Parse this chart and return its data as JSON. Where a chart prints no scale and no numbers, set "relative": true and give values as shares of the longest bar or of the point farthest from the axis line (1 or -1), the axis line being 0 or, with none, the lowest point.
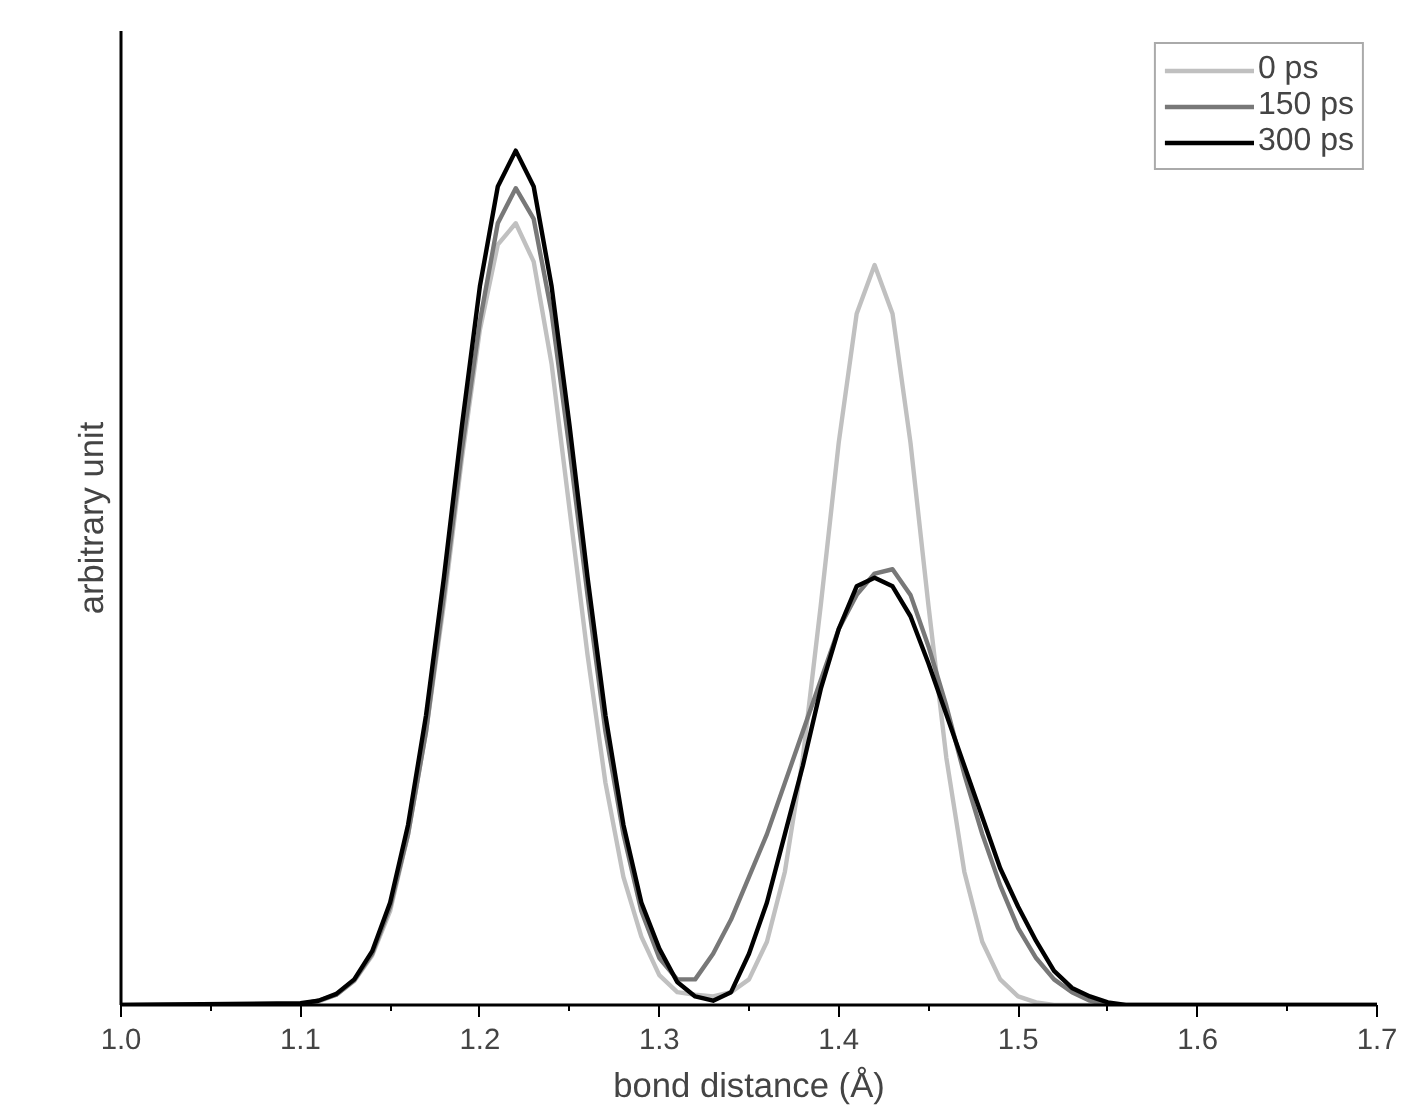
{
  "chart_data": {
    "type": "line",
    "relative": true,
    "xlabel": "bond distance (Å)",
    "ylabel": "arbitrary unit",
    "xlim": [
      1.0,
      1.7
    ],
    "xticks": [
      {
        "value": 1.0,
        "label": "1.0"
      },
      1.1,
      1.2,
      1.3,
      1.4,
      1.5,
      1.6,
      1.7
    ],
    "legend": "top right",
    "grid": false,
    "marker": "none",
    "line_style": "solid",
    "x": [
      1.0,
      1.1,
      1.11,
      1.12,
      1.13,
      1.14,
      1.15,
      1.16,
      1.17,
      1.18,
      1.19,
      1.2,
      1.21,
      1.22,
      1.23,
      1.24,
      1.25,
      1.26,
      1.27,
      1.28,
      1.29,
      1.3,
      1.31,
      1.32,
      1.33,
      1.34,
      1.35,
      1.36,
      1.37,
      1.38,
      1.39,
      1.4,
      1.41,
      1.42,
      1.43,
      1.44,
      1.45,
      1.46,
      1.47,
      1.48,
      1.49,
      1.5,
      1.51,
      1.52,
      1.53,
      1.54,
      1.55,
      1.56,
      1.7
    ],
    "series": [
      {
        "name": "0 ps",
        "color": "#c0c0c0",
        "values": [
          0,
          0.001,
          0.004,
          0.012,
          0.028,
          0.058,
          0.11,
          0.2,
          0.32,
          0.47,
          0.64,
          0.79,
          0.89,
          0.915,
          0.87,
          0.75,
          0.58,
          0.41,
          0.26,
          0.15,
          0.08,
          0.035,
          0.015,
          0.012,
          0.01,
          0.015,
          0.03,
          0.074,
          0.156,
          0.289,
          0.468,
          0.658,
          0.809,
          0.866,
          0.809,
          0.658,
          0.468,
          0.289,
          0.156,
          0.074,
          0.03,
          0.01,
          0.003,
          0,
          0,
          0,
          0,
          0,
          0
        ]
      },
      {
        "name": "150 ps",
        "color": "#787878",
        "values": [
          0,
          0.001,
          0.005,
          0.012,
          0.029,
          0.06,
          0.115,
          0.2,
          0.32,
          0.48,
          0.65,
          0.8,
          0.915,
          0.956,
          0.92,
          0.81,
          0.65,
          0.48,
          0.32,
          0.2,
          0.11,
          0.055,
          0.03,
          0.03,
          0.06,
          0.1,
          0.15,
          0.2,
          0.26,
          0.32,
          0.38,
          0.44,
          0.48,
          0.505,
          0.51,
          0.48,
          0.42,
          0.35,
          0.27,
          0.2,
          0.14,
          0.09,
          0.055,
          0.03,
          0.015,
          0.005,
          0,
          0,
          0
        ]
      },
      {
        "name": "300 ps",
        "color": "#000000",
        "values": [
          0,
          0.002,
          0.005,
          0.013,
          0.03,
          0.063,
          0.12,
          0.211,
          0.339,
          0.501,
          0.678,
          0.841,
          0.958,
          1.0,
          0.958,
          0.841,
          0.678,
          0.501,
          0.339,
          0.211,
          0.12,
          0.066,
          0.027,
          0.01,
          0.005,
          0.015,
          0.06,
          0.12,
          0.2,
          0.28,
          0.37,
          0.44,
          0.49,
          0.5,
          0.49,
          0.455,
          0.4,
          0.34,
          0.28,
          0.22,
          0.16,
          0.115,
          0.075,
          0.04,
          0.02,
          0.01,
          0.003,
          0,
          0
        ]
      }
    ]
  }
}
